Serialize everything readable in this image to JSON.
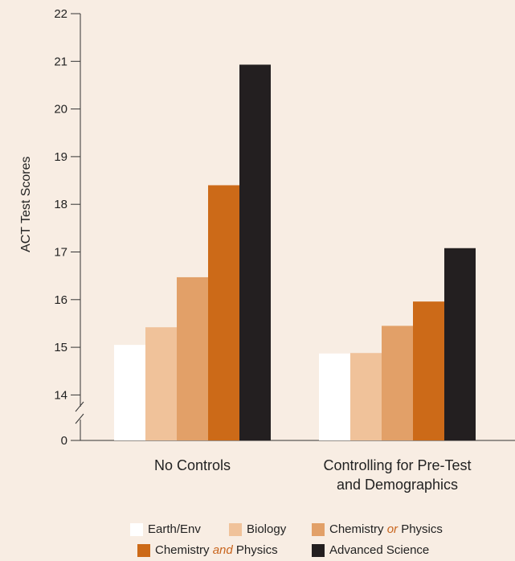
{
  "chart_data": {
    "type": "bar",
    "ylabel": "ACT Test Scores",
    "yticks": [
      0,
      14,
      15,
      16,
      17,
      18,
      19,
      20,
      21,
      22
    ],
    "axis_break": true,
    "ylim": [
      14,
      22
    ],
    "categories": [
      "No Controls",
      "Controlling for Pre-Test and Demographics"
    ],
    "series": [
      {
        "name": "Earth/Env",
        "color": "#ffffff",
        "values": [
          15.05,
          14.87
        ]
      },
      {
        "name": "Biology",
        "color": "#f0c29a",
        "values": [
          15.42,
          14.88
        ]
      },
      {
        "name": "Chemistry or Physics",
        "color": "#e2a068",
        "values": [
          16.47,
          15.45
        ]
      },
      {
        "name": "Chemistry and Physics",
        "color": "#cc6a18",
        "values": [
          18.4,
          15.96
        ]
      },
      {
        "name": "Advanced Science",
        "color": "#231f20",
        "values": [
          20.93,
          17.08
        ]
      }
    ],
    "legend_placement": "bottom-center"
  },
  "legend": {
    "earth": "Earth/Env",
    "biology": "Biology",
    "chem_or_a": "Chemistry ",
    "chem_or_b": "or",
    "chem_or_c": " Physics",
    "chem_and_a": "Chemistry ",
    "chem_and_b": "and",
    "chem_and_c": " Physics",
    "advanced": "Advanced Science"
  }
}
